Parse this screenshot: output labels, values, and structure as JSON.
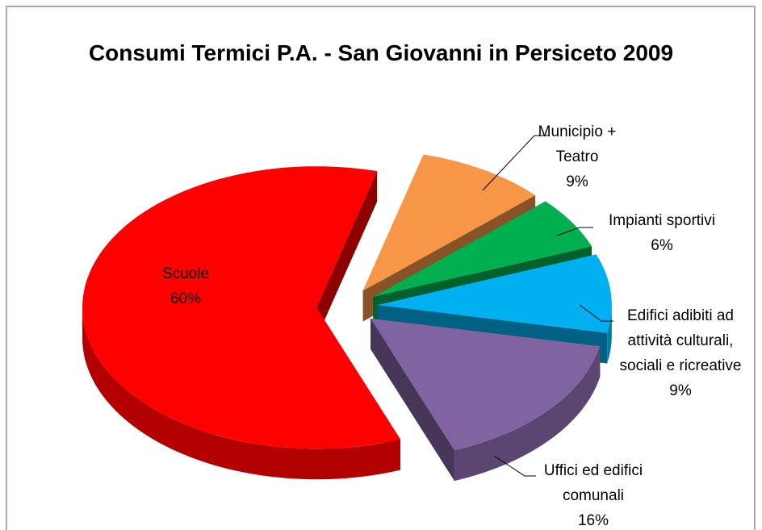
{
  "chart_data": {
    "type": "pie",
    "title": "Consumi Termici P.A. - San Giovanni in Persiceto 2009",
    "categories": [
      "Municipio + Teatro",
      "Impianti sportivi",
      "Edifici adibiti ad attività culturali, sociali e ricreative",
      "Uffici ed edifici comunali",
      "Scuole"
    ],
    "values": [
      9,
      6,
      9,
      16,
      60
    ],
    "value_labels": [
      "9%",
      "6%",
      "9%",
      "16%",
      "60%"
    ],
    "colors": [
      "#f79646",
      "#00b050",
      "#00b0f0",
      "#8064a2",
      "#ff0000"
    ]
  }
}
